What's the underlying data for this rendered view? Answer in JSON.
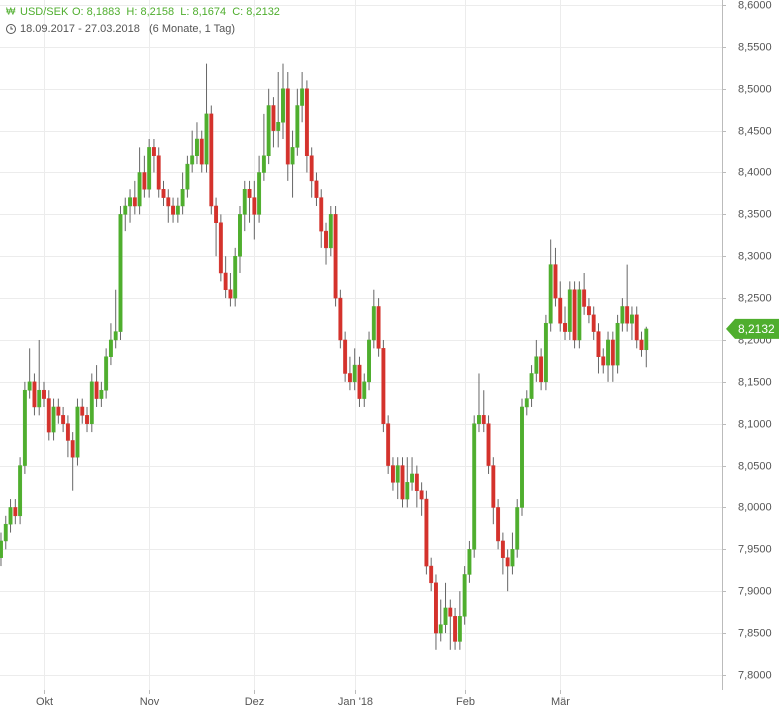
{
  "header": {
    "symbol": "USD/SEK",
    "ohlc": "O: 8,1883  H: 8,2158  L: 8,1674  C: 8,2132",
    "range": "18.09.2017 - 27.03.2018",
    "period": "(6 Monate, 1 Tag)"
  },
  "chart_data": {
    "type": "candlestick",
    "categories": [
      null,
      null,
      null,
      null,
      null,
      null,
      null,
      null,
      null,
      null,
      "Okt",
      null,
      null,
      null,
      null,
      null,
      null,
      null,
      null,
      null,
      null,
      null,
      null,
      null,
      null,
      null,
      null,
      null,
      null,
      null,
      null,
      null,
      "Nov",
      null,
      null,
      null,
      null,
      null,
      null,
      null,
      null,
      null,
      null,
      null,
      null,
      null,
      null,
      null,
      null,
      null,
      null,
      null,
      null,
      null,
      "Dez",
      null,
      null,
      null,
      null,
      null,
      null,
      null,
      null,
      null,
      null,
      null,
      null,
      null,
      null,
      null,
      null,
      null,
      null,
      null,
      null,
      "Jan '18",
      null,
      null,
      null,
      null,
      null,
      null,
      null,
      null,
      null,
      null,
      null,
      null,
      null,
      null,
      null,
      null,
      null,
      null,
      null,
      null,
      null,
      null,
      "Feb",
      null,
      null,
      null,
      null,
      null,
      null,
      null,
      null,
      null,
      null,
      null,
      null,
      null,
      null,
      null,
      null,
      null,
      null,
      null,
      "Mär",
      null,
      null,
      null,
      null,
      null,
      null,
      null,
      null,
      null,
      null,
      null,
      null,
      null,
      null,
      null,
      null,
      null,
      null
    ],
    "open": [
      7.96,
      7.94,
      7.96,
      7.98,
      8.0,
      7.99,
      8.05,
      8.14,
      8.15,
      8.12,
      8.14,
      8.13,
      8.09,
      8.12,
      8.11,
      8.1,
      8.08,
      8.06,
      8.12,
      8.11,
      8.1,
      8.15,
      8.13,
      8.14,
      8.18,
      8.2,
      8.21,
      8.35,
      8.36,
      8.37,
      8.36,
      8.4,
      8.38,
      8.43,
      8.42,
      8.38,
      8.37,
      8.36,
      8.35,
      8.36,
      8.38,
      8.41,
      8.42,
      8.44,
      8.41,
      8.47,
      8.36,
      8.34,
      8.28,
      8.26,
      8.25,
      8.3,
      8.35,
      8.38,
      8.37,
      8.35,
      8.4,
      8.42,
      8.48,
      8.45,
      8.46,
      8.5,
      8.41,
      8.43,
      8.48,
      8.5,
      8.42,
      8.39,
      8.37,
      8.33,
      8.31,
      8.35,
      8.25,
      8.2,
      8.16,
      8.15,
      8.17,
      8.13,
      8.15,
      8.2,
      8.24,
      8.19,
      8.1,
      8.05,
      8.03,
      8.05,
      8.01,
      8.03,
      8.04,
      8.02,
      8.01,
      7.93,
      7.91,
      7.85,
      7.86,
      7.88,
      7.87,
      7.84,
      7.87,
      7.92,
      7.95,
      8.1,
      8.11,
      8.1,
      8.05,
      8.0,
      7.96,
      7.94,
      7.93,
      7.95,
      8.0,
      8.12,
      8.13,
      8.16,
      8.18,
      8.15,
      8.22,
      8.29,
      8.25,
      8.22,
      8.21,
      8.26,
      8.2,
      8.26,
      8.24,
      8.23,
      8.21,
      8.18,
      8.17,
      8.2,
      8.17,
      8.22,
      8.24,
      8.22,
      8.23,
      8.2,
      8.1883
    ],
    "high": [
      7.97,
      7.97,
      7.99,
      8.01,
      8.01,
      8.06,
      8.15,
      8.19,
      8.16,
      8.2,
      8.15,
      8.14,
      8.13,
      8.13,
      8.12,
      8.11,
      8.09,
      8.13,
      8.13,
      8.12,
      8.16,
      8.17,
      8.15,
      8.19,
      8.22,
      8.26,
      8.36,
      8.37,
      8.38,
      8.39,
      8.43,
      8.42,
      8.44,
      8.44,
      8.43,
      8.39,
      8.38,
      8.37,
      8.37,
      8.4,
      8.42,
      8.45,
      8.46,
      8.45,
      8.53,
      8.48,
      8.37,
      8.35,
      8.3,
      8.28,
      8.31,
      8.36,
      8.39,
      8.39,
      8.39,
      8.42,
      8.47,
      8.5,
      8.49,
      8.52,
      8.53,
      8.52,
      8.45,
      8.5,
      8.52,
      8.51,
      8.43,
      8.4,
      8.38,
      8.34,
      8.36,
      8.36,
      8.26,
      8.21,
      8.18,
      8.19,
      8.18,
      8.16,
      8.21,
      8.26,
      8.25,
      8.2,
      8.11,
      8.06,
      8.06,
      8.06,
      8.06,
      8.06,
      8.05,
      8.03,
      8.02,
      7.94,
      7.92,
      7.89,
      7.91,
      7.89,
      7.88,
      7.9,
      7.93,
      7.96,
      8.11,
      8.16,
      8.14,
      8.11,
      8.06,
      8.01,
      7.97,
      7.95,
      7.97,
      8.01,
      8.13,
      8.14,
      8.17,
      8.2,
      8.19,
      8.23,
      8.32,
      8.31,
      8.27,
      8.24,
      8.27,
      8.27,
      8.27,
      8.28,
      8.25,
      8.24,
      8.22,
      8.19,
      8.21,
      8.21,
      8.23,
      8.25,
      8.29,
      8.24,
      8.24,
      8.21,
      8.2158
    ],
    "low": [
      7.93,
      7.93,
      7.95,
      7.97,
      7.98,
      7.98,
      8.04,
      8.13,
      8.11,
      8.11,
      8.12,
      8.08,
      8.08,
      8.1,
      8.09,
      8.06,
      8.02,
      8.05,
      8.1,
      8.09,
      8.09,
      8.12,
      8.12,
      8.13,
      8.17,
      8.19,
      8.2,
      8.33,
      8.34,
      8.35,
      8.35,
      8.37,
      8.37,
      8.4,
      8.37,
      8.36,
      8.34,
      8.34,
      8.34,
      8.35,
      8.37,
      8.4,
      8.41,
      8.4,
      8.4,
      8.35,
      8.3,
      8.27,
      8.25,
      8.24,
      8.24,
      8.28,
      8.33,
      8.34,
      8.32,
      8.34,
      8.39,
      8.41,
      8.43,
      8.43,
      8.44,
      8.39,
      8.37,
      8.42,
      8.46,
      8.4,
      8.37,
      8.36,
      8.31,
      8.29,
      8.3,
      8.24,
      8.19,
      8.15,
      8.14,
      8.14,
      8.12,
      8.12,
      8.14,
      8.19,
      8.18,
      8.09,
      8.04,
      8.02,
      8.01,
      8.0,
      8.0,
      8.02,
      8.0,
      7.99,
      7.92,
      7.9,
      7.83,
      7.84,
      7.85,
      7.83,
      7.83,
      7.83,
      7.86,
      7.91,
      7.94,
      8.09,
      8.09,
      8.04,
      7.98,
      7.95,
      7.92,
      7.9,
      7.92,
      7.94,
      7.99,
      8.11,
      8.12,
      8.15,
      8.14,
      8.14,
      8.21,
      8.24,
      8.21,
      8.2,
      8.2,
      8.19,
      8.19,
      8.23,
      8.22,
      8.2,
      8.16,
      8.16,
      8.15,
      8.15,
      8.16,
      8.21,
      8.21,
      8.2,
      8.19,
      8.18,
      8.1674
    ],
    "close": [
      7.94,
      7.96,
      7.98,
      8.0,
      7.99,
      8.05,
      8.14,
      8.15,
      8.12,
      8.14,
      8.13,
      8.09,
      8.12,
      8.11,
      8.1,
      8.08,
      8.06,
      8.12,
      8.11,
      8.1,
      8.15,
      8.13,
      8.14,
      8.18,
      8.2,
      8.21,
      8.35,
      8.36,
      8.37,
      8.36,
      8.4,
      8.38,
      8.43,
      8.42,
      8.38,
      8.37,
      8.36,
      8.35,
      8.36,
      8.38,
      8.41,
      8.42,
      8.44,
      8.41,
      8.47,
      8.36,
      8.34,
      8.28,
      8.26,
      8.25,
      8.3,
      8.35,
      8.38,
      8.37,
      8.35,
      8.4,
      8.42,
      8.48,
      8.45,
      8.46,
      8.5,
      8.41,
      8.43,
      8.48,
      8.5,
      8.42,
      8.39,
      8.37,
      8.33,
      8.31,
      8.35,
      8.25,
      8.2,
      8.16,
      8.15,
      8.17,
      8.13,
      8.15,
      8.2,
      8.24,
      8.19,
      8.1,
      8.05,
      8.03,
      8.05,
      8.01,
      8.03,
      8.04,
      8.02,
      8.01,
      7.93,
      7.91,
      7.85,
      7.86,
      7.88,
      7.87,
      7.84,
      7.87,
      7.92,
      7.95,
      8.1,
      8.11,
      8.1,
      8.05,
      8.0,
      7.96,
      7.94,
      7.93,
      7.95,
      8.0,
      8.12,
      8.13,
      8.16,
      8.18,
      8.15,
      8.22,
      8.29,
      8.25,
      8.22,
      8.21,
      8.26,
      8.2,
      8.26,
      8.24,
      8.23,
      8.21,
      8.18,
      8.17,
      8.2,
      8.17,
      8.22,
      8.24,
      8.22,
      8.23,
      8.2,
      8.1883,
      8.2132
    ],
    "up_color": "#4fae2e",
    "down_color": "#d4322c",
    "grid": true,
    "ylim": [
      7.782,
      8.606
    ],
    "yticks": [
      {
        "value": 7.8,
        "label": "7,8000"
      },
      {
        "value": 7.85,
        "label": "7,8500"
      },
      {
        "value": 7.9,
        "label": "7,9000"
      },
      {
        "value": 7.95,
        "label": "7,9500"
      },
      {
        "value": 8.0,
        "label": "8,0000"
      },
      {
        "value": 8.05,
        "label": "8,0500"
      },
      {
        "value": 8.1,
        "label": "8,1000"
      },
      {
        "value": 8.15,
        "label": "8,1500"
      },
      {
        "value": 8.2,
        "label": "8,2000"
      },
      {
        "value": 8.25,
        "label": "8,2500"
      },
      {
        "value": 8.3,
        "label": "8,3000"
      },
      {
        "value": 8.35,
        "label": "8,3500"
      },
      {
        "value": 8.4,
        "label": "8,4000"
      },
      {
        "value": 8.45,
        "label": "8,4500"
      },
      {
        "value": 8.5,
        "label": "8,5000"
      },
      {
        "value": 8.55,
        "label": "8,5500"
      },
      {
        "value": 8.6,
        "label": "8,6000"
      }
    ],
    "last_price": {
      "value": 8.2132,
      "label": "8,2132"
    }
  }
}
